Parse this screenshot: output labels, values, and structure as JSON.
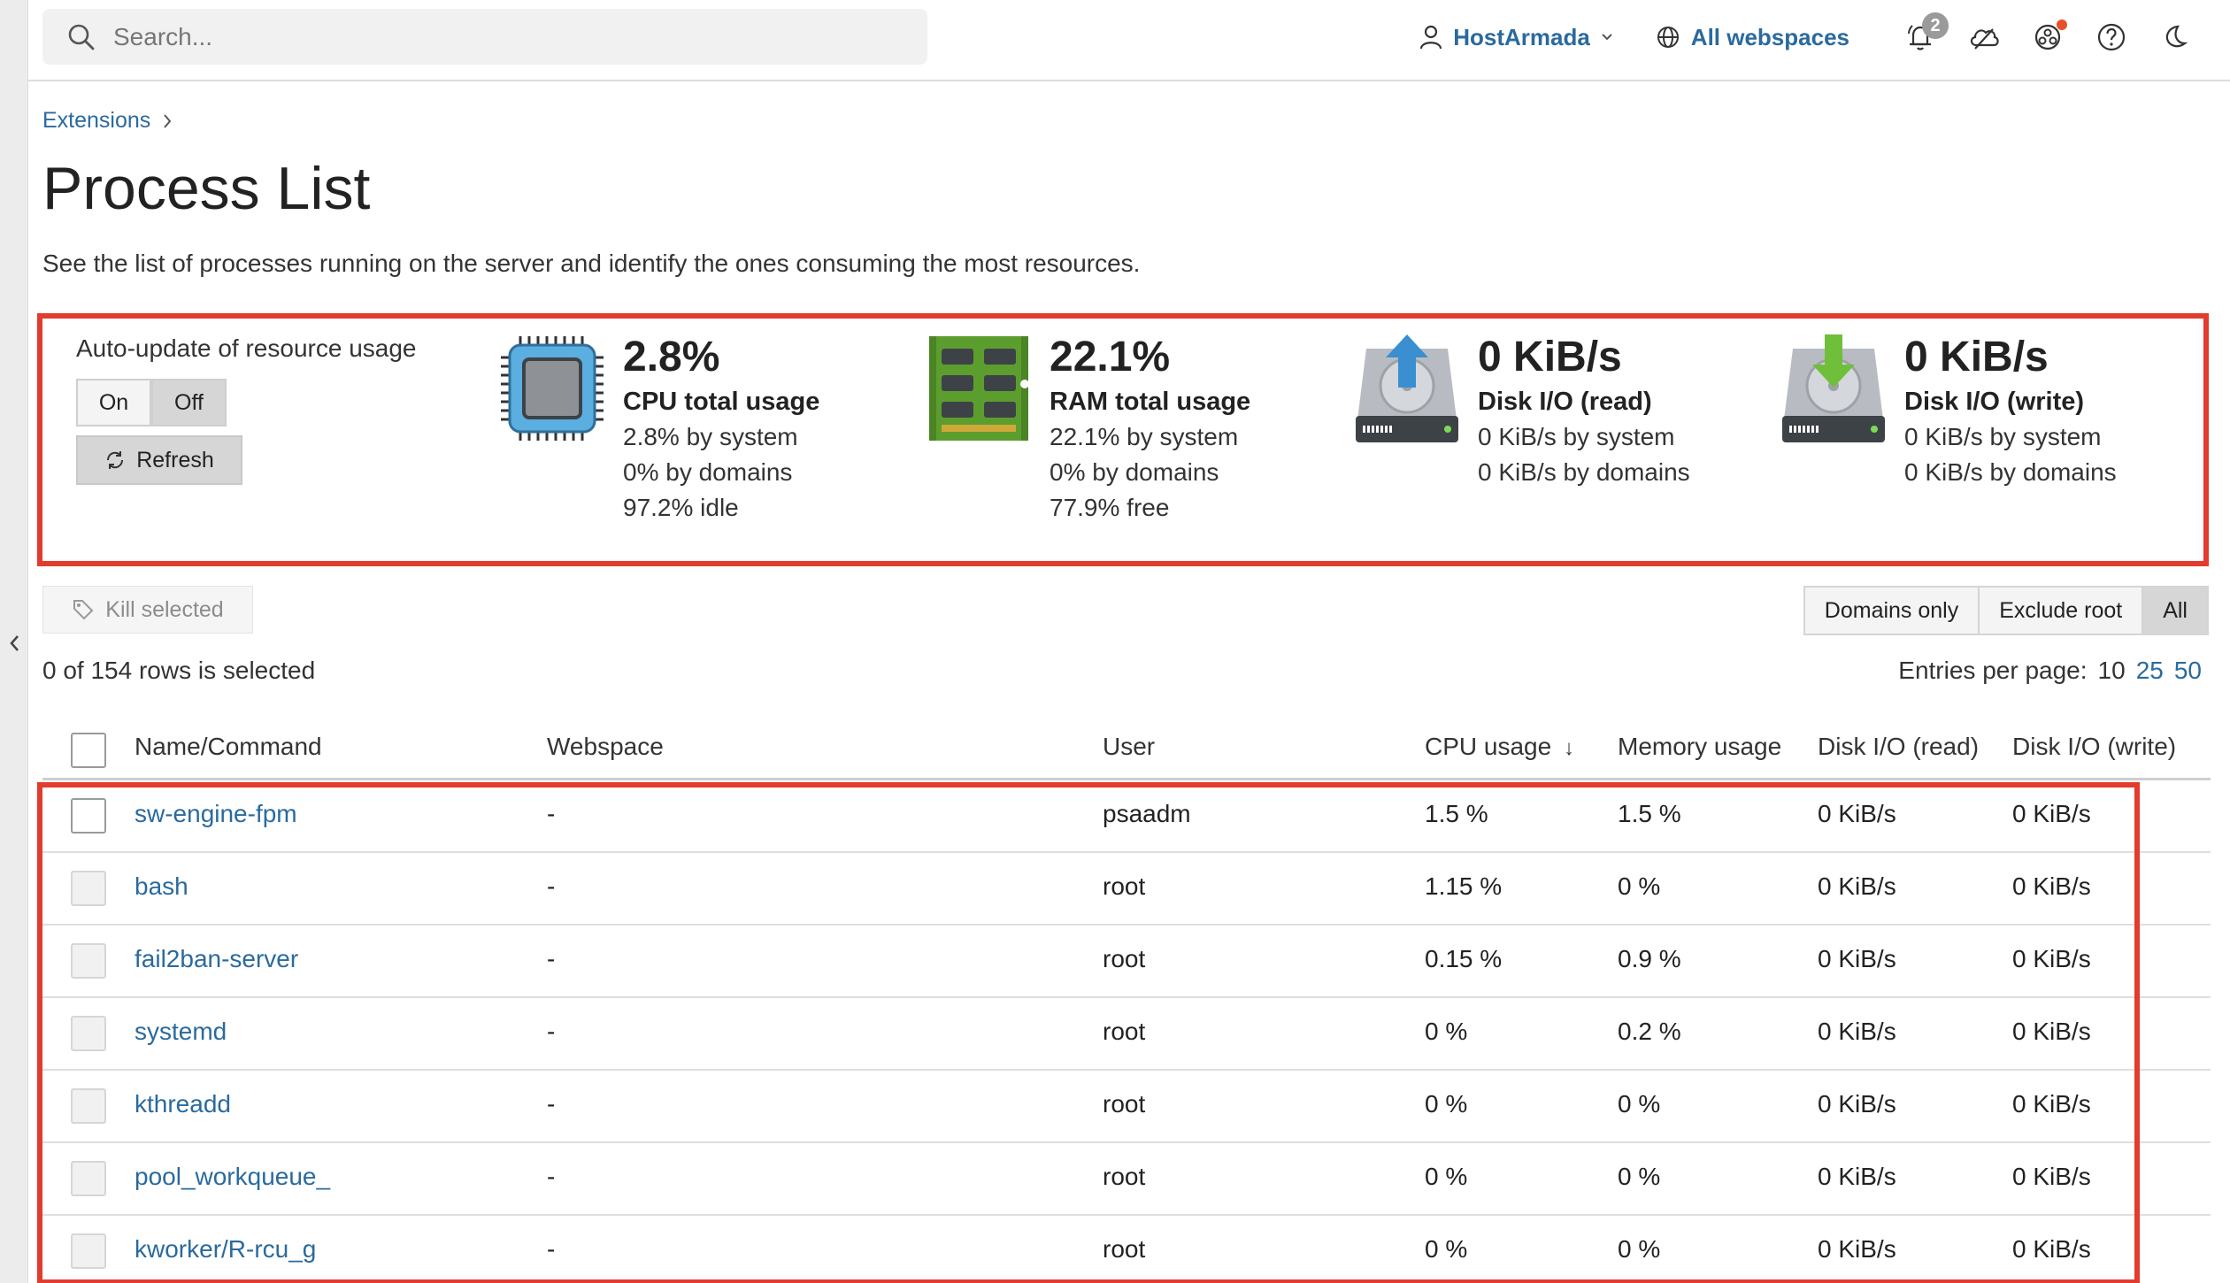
{
  "topbar": {
    "search_placeholder": "Search...",
    "account_label": "HostArmada",
    "webspaces_label": "All webspaces",
    "notifications_count": "2"
  },
  "breadcrumb": {
    "item": "Extensions"
  },
  "page": {
    "title": "Process List",
    "description": "See the list of processes running on the server and identify the ones consuming the most resources."
  },
  "auto_update": {
    "label": "Auto-update of resource usage",
    "on_label": "On",
    "off_label": "Off",
    "selected": "Off",
    "refresh_label": "Refresh"
  },
  "stats": {
    "cpu": {
      "value": "2.8%",
      "label": "CPU total usage",
      "lines": [
        "2.8% by system",
        "0% by domains",
        "97.2% idle"
      ]
    },
    "ram": {
      "value": "22.1%",
      "label": "RAM total usage",
      "lines": [
        "22.1% by system",
        "0% by domains",
        "77.9% free"
      ]
    },
    "disk_read": {
      "value": "0 KiB/s",
      "label": "Disk I/O (read)",
      "lines": [
        "0 KiB/s by system",
        "0 KiB/s by domains"
      ]
    },
    "disk_write": {
      "value": "0 KiB/s",
      "label": "Disk I/O (write)",
      "lines": [
        "0 KiB/s by system",
        "0 KiB/s by domains"
      ]
    }
  },
  "toolbar": {
    "kill_label": "Kill selected",
    "filters": [
      "Domains only",
      "Exclude root",
      "All"
    ],
    "active_filter": "All",
    "rows_selected": "0 of 154 rows is selected",
    "entries_label": "Entries per page:",
    "entries_options": [
      "10",
      "25",
      "50"
    ],
    "entries_selected": "10"
  },
  "table": {
    "headers": {
      "name": "Name/Command",
      "webspace": "Webspace",
      "user": "User",
      "cpu": "CPU usage",
      "memory": "Memory usage",
      "disk_read": "Disk I/O (read)",
      "disk_write": "Disk I/O (write)"
    },
    "rows": [
      {
        "name": "sw-engine-fpm",
        "webspace": "-",
        "user": "psaadm",
        "cpu": "1.5 %",
        "memory": "1.5 %",
        "disk_read": "0 KiB/s",
        "disk_write": "0 KiB/s"
      },
      {
        "name": "bash",
        "webspace": "-",
        "user": "root",
        "cpu": "1.15 %",
        "memory": "0 %",
        "disk_read": "0 KiB/s",
        "disk_write": "0 KiB/s"
      },
      {
        "name": "fail2ban-server",
        "webspace": "-",
        "user": "root",
        "cpu": "0.15 %",
        "memory": "0.9 %",
        "disk_read": "0 KiB/s",
        "disk_write": "0 KiB/s"
      },
      {
        "name": "systemd",
        "webspace": "-",
        "user": "root",
        "cpu": "0 %",
        "memory": "0.2 %",
        "disk_read": "0 KiB/s",
        "disk_write": "0 KiB/s"
      },
      {
        "name": "kthreadd",
        "webspace": "-",
        "user": "root",
        "cpu": "0 %",
        "memory": "0 %",
        "disk_read": "0 KiB/s",
        "disk_write": "0 KiB/s"
      },
      {
        "name": "pool_workqueue_",
        "webspace": "-",
        "user": "root",
        "cpu": "0 %",
        "memory": "0 %",
        "disk_read": "0 KiB/s",
        "disk_write": "0 KiB/s"
      },
      {
        "name": "kworker/R-rcu_g",
        "webspace": "-",
        "user": "root",
        "cpu": "0 %",
        "memory": "0 %",
        "disk_read": "0 KiB/s",
        "disk_write": "0 KiB/s"
      }
    ]
  },
  "colors": {
    "link": "#2a6a9e",
    "highlight_border": "#e33b2e",
    "cpu_icon": "#5aaee0",
    "ram_icon": "#5c9e2e",
    "disk_icon": "#b8bcc2",
    "upload_arrow": "#3a8fd0",
    "download_arrow": "#6fbf3a"
  }
}
